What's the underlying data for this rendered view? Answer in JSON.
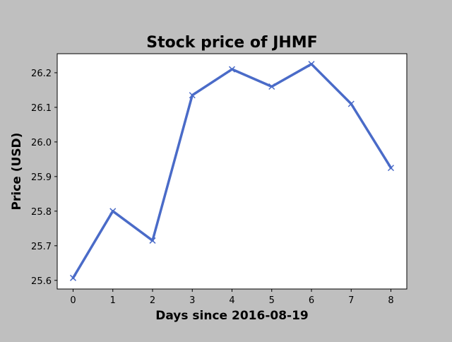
{
  "chart_data": {
    "type": "line",
    "title": "Stock price of JHMF",
    "xlabel": "Days since 2016-08-19",
    "ylabel": "Price (USD)",
    "x": [
      0,
      1,
      2,
      3,
      4,
      5,
      6,
      7,
      8
    ],
    "series": [
      {
        "values": [
          25.607,
          25.8,
          25.715,
          26.135,
          26.21,
          26.16,
          26.225,
          26.11,
          25.925
        ]
      }
    ],
    "xlim": [
      -0.4,
      8.4
    ],
    "ylim": [
      25.575,
      26.255
    ],
    "xticks": [
      0,
      1,
      2,
      3,
      4,
      5,
      6,
      7,
      8
    ],
    "yticks": [
      25.6,
      25.7,
      25.8,
      25.9,
      26.0,
      26.1,
      26.2
    ],
    "ytick_labels": [
      "25.6",
      "25.7",
      "25.8",
      "25.9",
      "26.0",
      "26.1",
      "26.2"
    ],
    "marker": "x",
    "grid": false,
    "legend": "none",
    "colors": {
      "line": "#4a6bc8",
      "figure_background": "#bfbfbf",
      "plot_background": "#ffffff"
    }
  }
}
